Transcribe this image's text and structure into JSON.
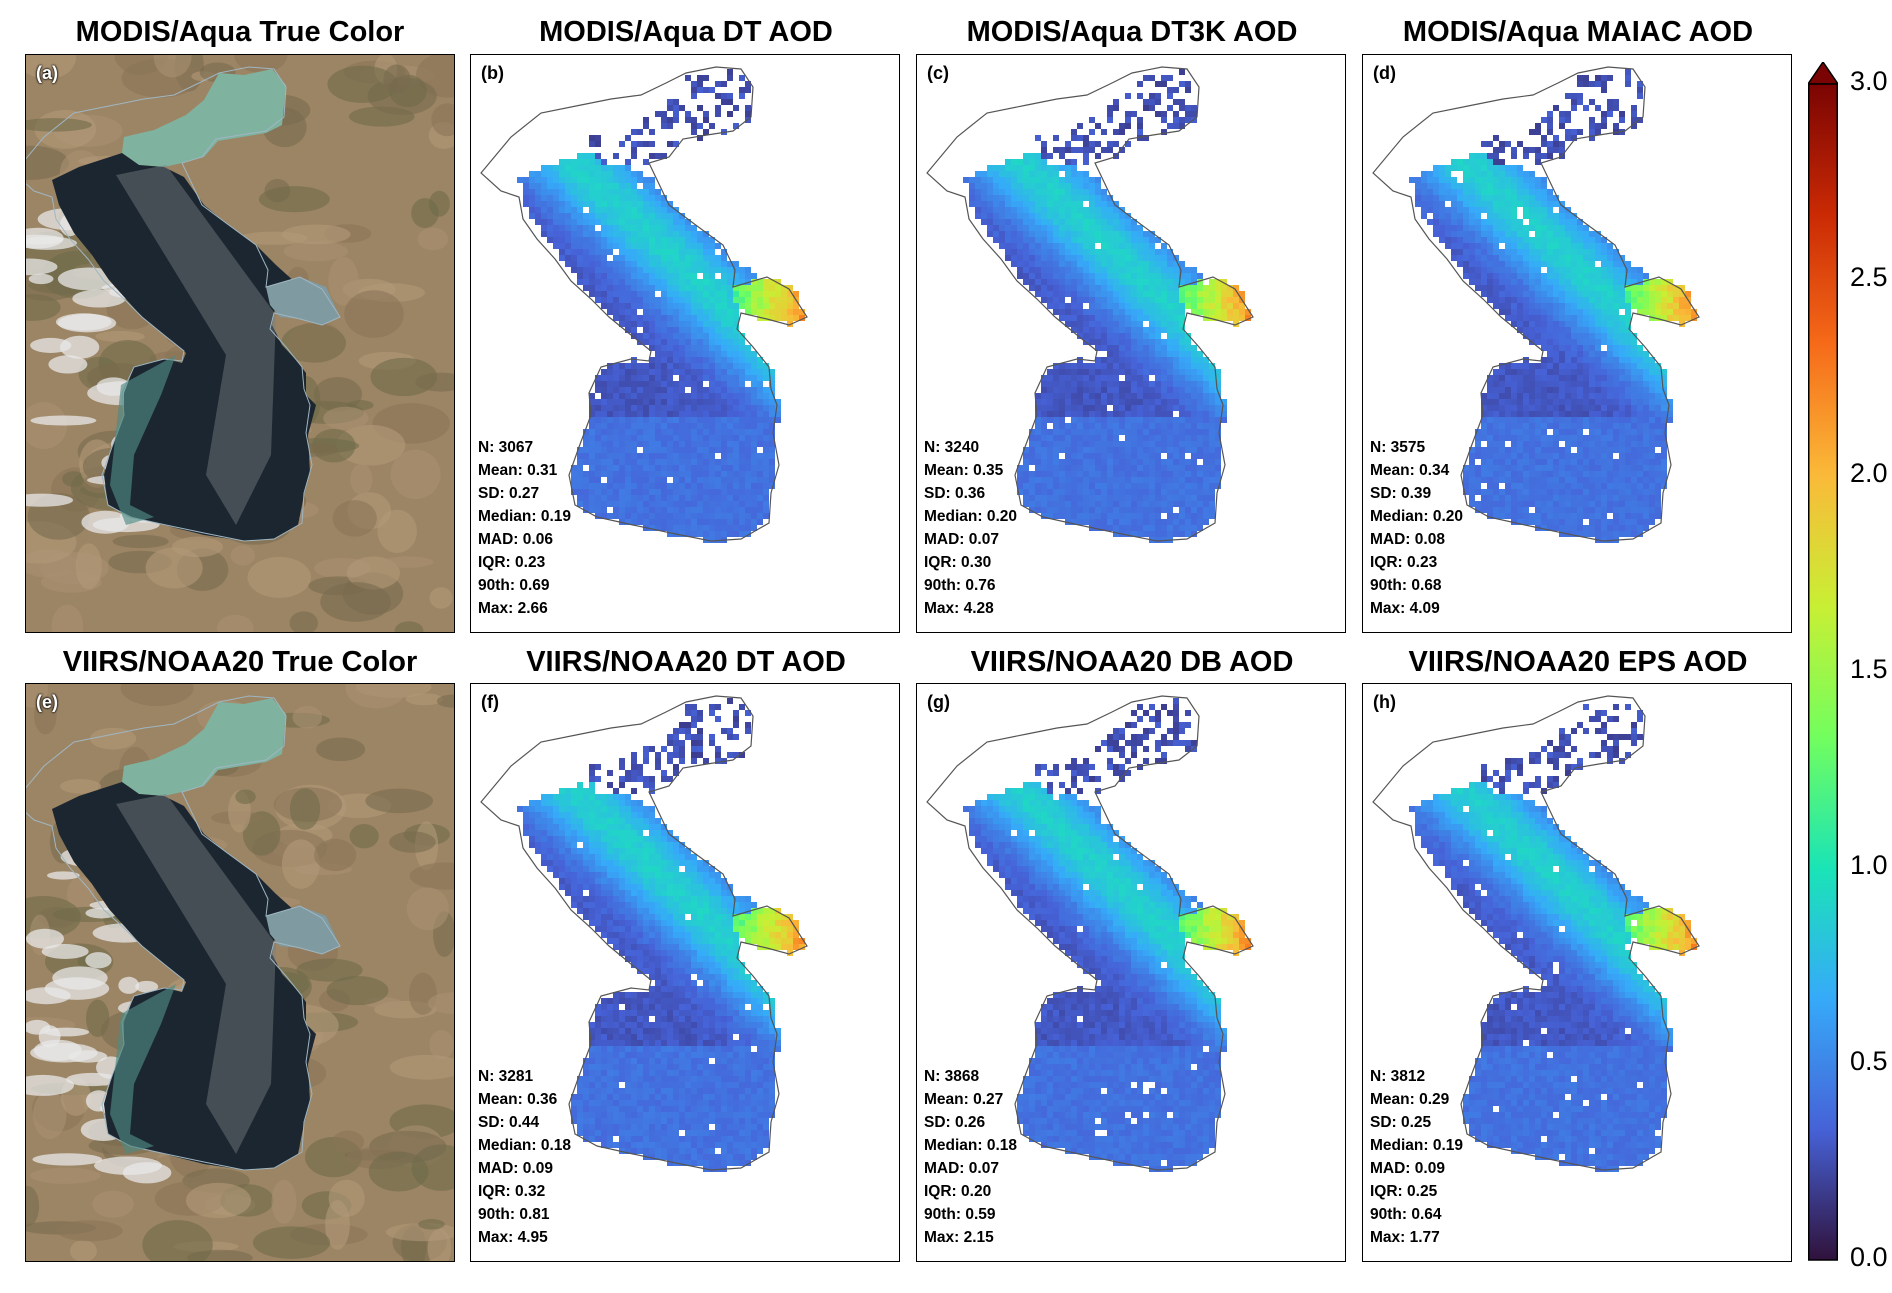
{
  "colorbar": {
    "ticks": [
      "0.0",
      "0.5",
      "1.0",
      "1.5",
      "2.0",
      "2.5",
      "3.0"
    ],
    "colors": [
      "#30123b",
      "#4662d7",
      "#36aaf9",
      "#1ae4b6",
      "#72fe5e",
      "#c8ef34",
      "#faba39",
      "#f66b19",
      "#ca2a04",
      "#7a0403"
    ]
  },
  "panels": [
    {
      "label": "(a)",
      "title": "MODIS/Aqua True Color",
      "kind": "truecolor"
    },
    {
      "label": "(b)",
      "title": "MODIS/Aqua DT AOD",
      "kind": "aod",
      "stats": {
        "n": "N: 3067",
        "mean": "Mean: 0.31",
        "sd": "SD: 0.27",
        "median": "Median: 0.19",
        "mad": "MAD: 0.06",
        "iqr": "IQR: 0.23",
        "p90": "90th: 0.69",
        "max": "Max: 2.66"
      }
    },
    {
      "label": "(c)",
      "title": "MODIS/Aqua DT3K AOD",
      "kind": "aod",
      "stats": {
        "n": "N: 3240",
        "mean": "Mean: 0.35",
        "sd": "SD: 0.36",
        "median": "Median: 0.20",
        "mad": "MAD: 0.07",
        "iqr": "IQR: 0.30",
        "p90": "90th: 0.76",
        "max": "Max: 4.28"
      }
    },
    {
      "label": "(d)",
      "title": "MODIS/Aqua MAIAC AOD",
      "kind": "aod",
      "stats": {
        "n": "N: 3575",
        "mean": "Mean: 0.34",
        "sd": "SD: 0.39",
        "median": "Median: 0.20",
        "mad": "MAD: 0.08",
        "iqr": "IQR: 0.23",
        "p90": "90th: 0.68",
        "max": "Max: 4.09"
      }
    },
    {
      "label": "(e)",
      "title": "VIIRS/NOAA20 True Color",
      "kind": "truecolor"
    },
    {
      "label": "(f)",
      "title": "VIIRS/NOAA20 DT AOD",
      "kind": "aod",
      "stats": {
        "n": "N: 3281",
        "mean": "Mean: 0.36",
        "sd": "SD: 0.44",
        "median": "Median: 0.18",
        "mad": "MAD: 0.09",
        "iqr": "IQR: 0.32",
        "p90": "90th: 0.81",
        "max": "Max: 4.95"
      }
    },
    {
      "label": "(g)",
      "title": "VIIRS/NOAA20 DB AOD",
      "kind": "aod",
      "stats": {
        "n": "N: 3868",
        "mean": "Mean: 0.27",
        "sd": "SD: 0.26",
        "median": "Median: 0.18",
        "mad": "MAD: 0.07",
        "iqr": "IQR: 0.20",
        "p90": "90th: 0.59",
        "max": "Max: 2.15"
      }
    },
    {
      "label": "(h)",
      "title": "VIIRS/NOAA20 EPS AOD",
      "kind": "aod",
      "stats": {
        "n": "N: 3812",
        "mean": "Mean: 0.29",
        "sd": "SD: 0.25",
        "median": "Median: 0.19",
        "mad": "MAD: 0.09",
        "iqr": "IQR: 0.25",
        "p90": "90th: 0.64",
        "max": "Max: 1.77"
      }
    }
  ]
}
